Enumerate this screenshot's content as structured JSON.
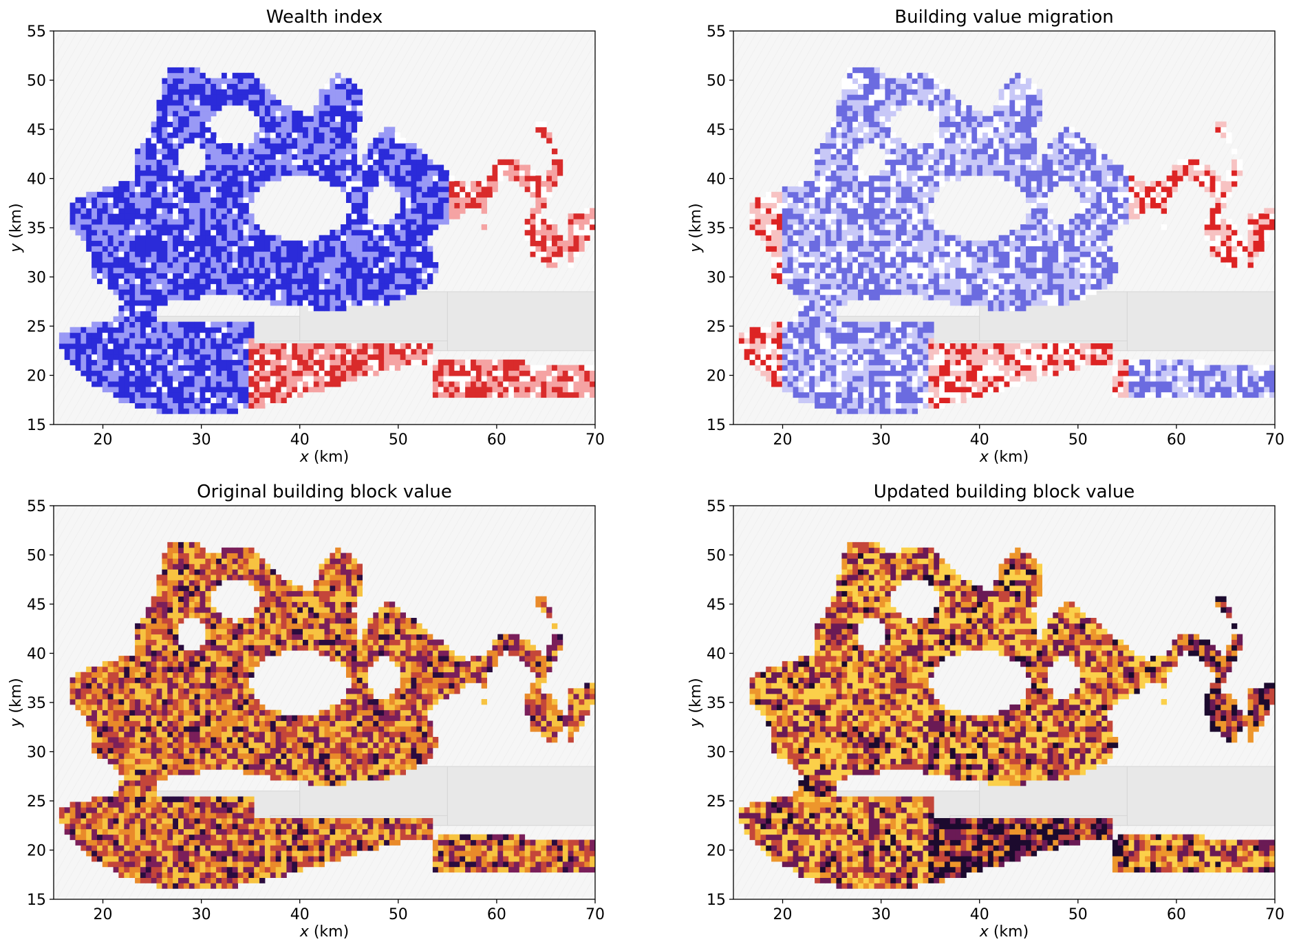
{
  "chart_data": [
    {
      "type": "heatmap",
      "title": "Wealth index",
      "xlabel_var": "x",
      "xlabel_unit": " (km)",
      "ylabel_var": "y",
      "ylabel_unit": " (km)",
      "xlim": [
        15,
        70
      ],
      "ylim": [
        15,
        55
      ],
      "xticks": [
        20,
        30,
        40,
        50,
        60,
        70
      ],
      "yticks": [
        15,
        20,
        25,
        30,
        35,
        40,
        45,
        50,
        55
      ],
      "colormap": "bwr",
      "colors": [
        "#2b2bd9",
        "#9999f5",
        "#ffffff",
        "#f5a3a3",
        "#d92b2b"
      ]
    },
    {
      "type": "heatmap",
      "title": "Building value migration",
      "xlabel_var": "x",
      "xlabel_unit": " (km)",
      "ylabel_var": "y",
      "ylabel_unit": " (km)",
      "xlim": [
        15,
        70
      ],
      "ylim": [
        15,
        55
      ],
      "xticks": [
        20,
        30,
        40,
        50,
        60,
        70
      ],
      "yticks": [
        15,
        20,
        25,
        30,
        35,
        40,
        45,
        50,
        55
      ],
      "colormap": "bwr",
      "colors": [
        "#6b6be0",
        "#c8c8f7",
        "#ffffff",
        "#f7c2c2",
        "#dd2424"
      ]
    },
    {
      "type": "heatmap",
      "title": "Original building block value",
      "xlabel_var": "x",
      "xlabel_unit": " (km)",
      "ylabel_var": "y",
      "ylabel_unit": " (km)",
      "xlim": [
        15,
        70
      ],
      "ylim": [
        15,
        55
      ],
      "xticks": [
        20,
        30,
        40,
        50,
        60,
        70
      ],
      "yticks": [
        15,
        20,
        25,
        30,
        35,
        40,
        45,
        50,
        55
      ],
      "colormap": "inferno",
      "colors": [
        "#2a0c3f",
        "#7a1f5a",
        "#c4463a",
        "#e98a2a",
        "#f7c341"
      ]
    },
    {
      "type": "heatmap",
      "title": "Updated building block value",
      "xlabel_var": "x",
      "xlabel_unit": " (km)",
      "ylabel_var": "y",
      "ylabel_unit": " (km)",
      "xlim": [
        15,
        70
      ],
      "ylim": [
        15,
        55
      ],
      "xticks": [
        20,
        30,
        40,
        50,
        60,
        70
      ],
      "yticks": [
        15,
        20,
        25,
        30,
        35,
        40,
        45,
        50,
        55
      ],
      "colormap": "inferno",
      "colors": [
        "#1c0a2e",
        "#6a1a55",
        "#c4463a",
        "#ed962c",
        "#fbd04a"
      ]
    }
  ],
  "background_color": "#f6f6f6",
  "sea_color": "#e8e8e8"
}
